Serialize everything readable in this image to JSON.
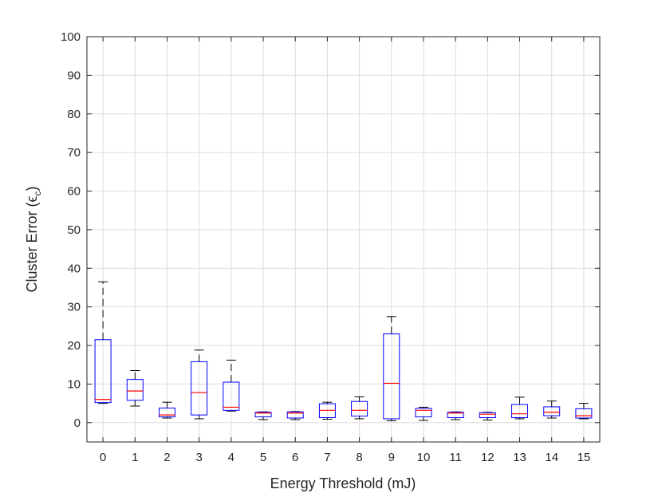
{
  "chart_data": {
    "type": "boxplot",
    "title": "",
    "xlabel": "Energy Threshold (mJ)",
    "ylabel": {
      "main": "Cluster Error (",
      "symbol": "ϵ",
      "subscript": "c",
      "close": ")"
    },
    "categories": [
      "0",
      "1",
      "2",
      "3",
      "4",
      "5",
      "6",
      "7",
      "8",
      "9",
      "10",
      "11",
      "12",
      "13",
      "14",
      "15"
    ],
    "ylim": [
      -5,
      100
    ],
    "yticks": [
      0,
      10,
      20,
      30,
      40,
      50,
      60,
      70,
      80,
      90,
      100
    ],
    "grid": true,
    "boxes": [
      {
        "x": "0",
        "whisker_low": 5.0,
        "q1": 5.2,
        "median": 6.0,
        "q3": 21.5,
        "whisker_high": 36.5
      },
      {
        "x": "1",
        "whisker_low": 4.3,
        "q1": 5.8,
        "median": 8.2,
        "q3": 11.2,
        "whisker_high": 13.5
      },
      {
        "x": "2",
        "whisker_low": 1.2,
        "q1": 1.5,
        "median": 2.0,
        "q3": 3.8,
        "whisker_high": 5.3
      },
      {
        "x": "3",
        "whisker_low": 1.0,
        "q1": 2.0,
        "median": 7.8,
        "q3": 15.8,
        "whisker_high": 18.8
      },
      {
        "x": "4",
        "whisker_low": 3.0,
        "q1": 3.2,
        "median": 4.0,
        "q3": 10.5,
        "whisker_high": 16.2
      },
      {
        "x": "5",
        "whisker_low": 0.8,
        "q1": 1.5,
        "median": 2.5,
        "q3": 2.7,
        "whisker_high": 2.8
      },
      {
        "x": "6",
        "whisker_low": 0.8,
        "q1": 1.2,
        "median": 2.5,
        "q3": 2.8,
        "whisker_high": 2.9
      },
      {
        "x": "7",
        "whisker_low": 0.9,
        "q1": 1.3,
        "median": 3.2,
        "q3": 4.9,
        "whisker_high": 5.3
      },
      {
        "x": "8",
        "whisker_low": 1.0,
        "q1": 1.7,
        "median": 3.2,
        "q3": 5.5,
        "whisker_high": 6.7
      },
      {
        "x": "9",
        "whisker_low": 0.5,
        "q1": 1.0,
        "median": 10.2,
        "q3": 23.0,
        "whisker_high": 27.5
      },
      {
        "x": "10",
        "whisker_low": 0.6,
        "q1": 1.5,
        "median": 3.2,
        "q3": 3.7,
        "whisker_high": 4.0
      },
      {
        "x": "11",
        "whisker_low": 0.8,
        "q1": 1.3,
        "median": 2.5,
        "q3": 2.7,
        "whisker_high": 2.8
      },
      {
        "x": "12",
        "whisker_low": 0.7,
        "q1": 1.3,
        "median": 2.2,
        "q3": 2.6,
        "whisker_high": 2.7
      },
      {
        "x": "13",
        "whisker_low": 1.0,
        "q1": 1.3,
        "median": 2.3,
        "q3": 4.7,
        "whisker_high": 6.6
      },
      {
        "x": "14",
        "whisker_low": 1.2,
        "q1": 1.8,
        "median": 2.7,
        "q3": 4.1,
        "whisker_high": 5.6
      },
      {
        "x": "15",
        "whisker_low": 1.0,
        "q1": 1.2,
        "median": 1.8,
        "q3": 3.6,
        "whisker_high": 5.0
      }
    ],
    "colors": {
      "box": "#0000ff",
      "median": "#ff0000",
      "whisker": "#000000",
      "axis": "#262626",
      "grid": "#dcdcdc"
    }
  }
}
